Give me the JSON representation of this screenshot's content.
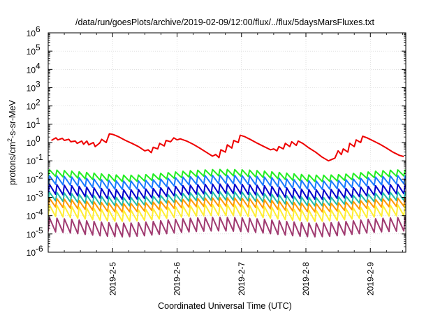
{
  "chart_data": {
    "type": "line",
    "title": "/data/run/goesPlots/archive/2019-02-09/12:00/flux/../flux/5daysMarsFluxes.txt",
    "xlabel": "Coordinated Universal Time (UTC)",
    "ylabel_main": "protons/cm",
    "ylabel_sup": "2",
    "ylabel_rest": "-s-sr-MeV",
    "y_scale": "log",
    "ylim_exp": [
      -6,
      6
    ],
    "y_ticks": [
      {
        "base": "10",
        "exp": "-6",
        "e": -6
      },
      {
        "base": "10",
        "exp": "-5",
        "e": -5
      },
      {
        "base": "10",
        "exp": "-4",
        "e": -4
      },
      {
        "base": "10",
        "exp": "-3",
        "e": -3
      },
      {
        "base": "10",
        "exp": "-2",
        "e": -2
      },
      {
        "base": "10",
        "exp": "-1",
        "e": -1
      },
      {
        "base": "10",
        "exp": "0",
        "e": 0
      },
      {
        "base": "10",
        "exp": "1",
        "e": 1
      },
      {
        "base": "10",
        "exp": "2",
        "e": 2
      },
      {
        "base": "10",
        "exp": "3",
        "e": 3
      },
      {
        "base": "10",
        "exp": "4",
        "e": 4
      },
      {
        "base": "10",
        "exp": "5",
        "e": 5
      },
      {
        "base": "10",
        "exp": "6",
        "e": 6
      }
    ],
    "xlim_days": [
      4.0,
      9.55
    ],
    "x_ticks": [
      {
        "label": "2019-2-5",
        "day": 5
      },
      {
        "label": "2019-2-6",
        "day": 6
      },
      {
        "label": "2019-2-7",
        "day": 7
      },
      {
        "label": "2019-2-8",
        "day": 8
      },
      {
        "label": "2019-2-9",
        "day": 9
      }
    ],
    "grid": true,
    "series": [
      {
        "color": "#ee0000",
        "x": [
          4.05,
          4.12,
          4.15,
          4.22,
          4.25,
          4.32,
          4.35,
          4.42,
          4.45,
          4.52,
          4.55,
          4.6,
          4.63,
          4.7,
          4.73,
          4.8,
          4.83,
          4.9,
          4.95,
          5.0,
          5.05,
          5.1,
          5.2,
          5.3,
          5.4,
          5.5,
          5.55,
          5.6,
          5.63,
          5.7,
          5.73,
          5.8,
          5.83,
          5.9,
          5.95,
          6.0,
          6.05,
          6.15,
          6.25,
          6.35,
          6.45,
          6.55,
          6.6,
          6.65,
          6.68,
          6.75,
          6.78,
          6.85,
          6.88,
          6.95,
          6.98,
          7.05,
          7.15,
          7.25,
          7.35,
          7.45,
          7.5,
          7.55,
          7.58,
          7.65,
          7.68,
          7.75,
          7.78,
          7.85,
          7.88,
          7.95,
          8.05,
          8.15,
          8.25,
          8.35,
          8.45,
          8.5,
          8.55,
          8.58,
          8.65,
          8.68,
          8.75,
          8.78,
          8.85,
          8.88,
          8.95,
          9.05,
          9.15,
          9.25,
          9.35,
          9.45,
          9.52
        ],
        "y": [
          1.3,
          1.8,
          1.4,
          1.7,
          1.3,
          1.5,
          1.1,
          1.2,
          0.9,
          1.2,
          0.8,
          1.2,
          0.75,
          1.0,
          0.6,
          0.95,
          1.5,
          1.0,
          3.0,
          2.8,
          2.4,
          2.0,
          1.3,
          0.9,
          0.6,
          0.35,
          0.4,
          0.28,
          0.55,
          0.45,
          0.9,
          0.65,
          1.3,
          1.1,
          1.8,
          1.4,
          1.6,
          1.2,
          0.8,
          0.5,
          0.3,
          0.18,
          0.22,
          0.15,
          0.4,
          0.3,
          0.75,
          0.5,
          1.3,
          1.0,
          2.5,
          2.1,
          1.4,
          0.9,
          0.6,
          0.4,
          0.45,
          0.35,
          0.6,
          0.45,
          0.9,
          0.6,
          1.1,
          0.7,
          1.2,
          0.9,
          0.5,
          0.3,
          0.16,
          0.1,
          0.14,
          0.35,
          0.22,
          0.45,
          0.3,
          0.9,
          0.6,
          1.4,
          1.0,
          2.2,
          1.8,
          1.2,
          0.8,
          0.5,
          0.3,
          0.2,
          0.17
        ]
      },
      {
        "color": "#22ee22",
        "base": 0.025,
        "depth": 0.45,
        "period": 0.115
      },
      {
        "color": "#1a7aff",
        "base": 0.012,
        "depth": 0.35,
        "period": 0.115
      },
      {
        "color": "#0000cc",
        "base": 0.004,
        "depth": 0.3,
        "period": 0.115
      },
      {
        "color": "#22bbaa",
        "base": 0.0015,
        "depth": 0.35,
        "period": 0.115
      },
      {
        "color": "#ff9900",
        "base": 0.0007,
        "depth": 0.35,
        "period": 0.115
      },
      {
        "color": "#ffee33",
        "base": 0.0003,
        "depth": 0.25,
        "period": 0.115
      },
      {
        "color": "#a03a70",
        "base": 6e-05,
        "depth": 0.18,
        "period": 0.115
      }
    ]
  }
}
